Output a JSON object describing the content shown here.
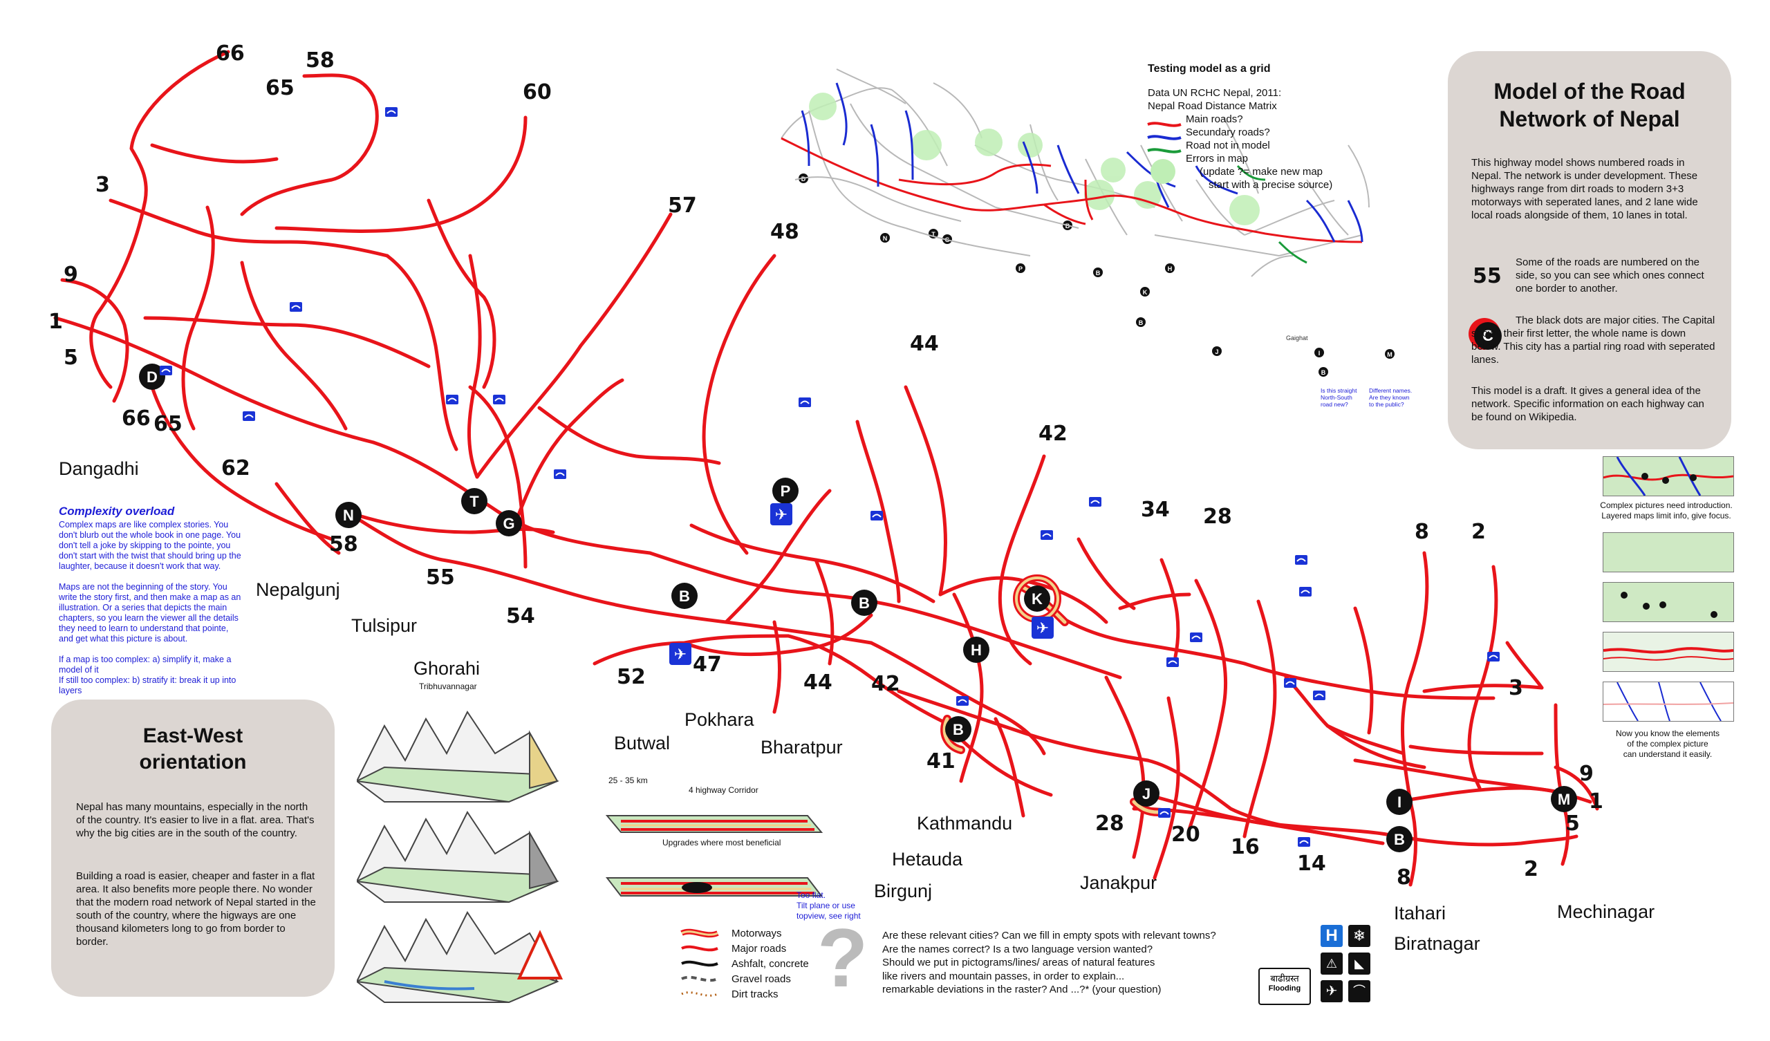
{
  "title_panel": {
    "title_line1": "Model of the Road",
    "title_line2": "Network of Nepal",
    "paragraph1": "This highway model shows numbered roads in Nepal. The network is under development. These highways range from dirt roads to modern 3+3 motorways with seperated lanes, and 2 lane wide local roads alongside of them, 10 lanes in total.",
    "legend_number": "55",
    "legend_number_text": "Some of the roads are numbered on the side, so you can see which ones connect one border to another.",
    "legend_city_letter": "C",
    "legend_city_text": "The black dots are major cities. The Capital shows their first letter, the whole name is down below. This city has a partial ring road with seperated lanes.",
    "paragraph3": "This model is a draft. It gives a general idea of the network. Specific information on each highway can be found on Wikipedia."
  },
  "east_west_panel": {
    "title_line1": "East-West",
    "title_line2": "orientation",
    "paragraph1": "Nepal has many mountains, especially in the north of the country. It's easier to live in a flat. area. That's why the big cities are in the south of the country.",
    "paragraph2": "Building a road is easier, cheaper and faster in a flat area. It also benefits more people there. No wonder that the modern road network of Nepal started in the south of the country, where the higways are one thousand kilometers long to go from border to border."
  },
  "complexity": {
    "title": "Complexity overload",
    "p1": "Complex maps are like complex stories. You don't blurb out the whole book in one page. You don't tell a joke by skipping to the pointe, you don't start with the twist that should bring up the laughter, because it doesn't work that way.",
    "p2": "Maps are not the beginning of the story. You write the story first, and then make a map as an illustration. Or a series that depicts the main chapters, so you learn the viewer all the details they need to learn to understand that pointe, and get what this picture is about.",
    "p3a": "If a map is too complex: a) simplify it, make a model of it",
    "p3b": "If still too complex: b) stratify it: break it up into layers"
  },
  "grid_legend": {
    "title": "Testing model as a grid",
    "source1": "Data UN RCHC Nepal, 2011:",
    "source2": "Nepal Road Distance Matrix",
    "main_roads": "Main roads?",
    "secondary_roads": "Secundary roads?",
    "not_in_model": "Road not in model",
    "errors": "Errors in map",
    "update1": "(update ?= make new map",
    "update2": "start with a precise source)",
    "ghaghat": "Gaighat",
    "note_left1": "Is this straight",
    "note_left2": "North-South",
    "note_left3": "road new?",
    "note_right1": "Different names.",
    "note_right2": "Are they known",
    "note_right3": "to the public?"
  },
  "layers": {
    "caption_top1": "Complex pictures need introduction.",
    "caption_top2": "Layered maps limit info, give focus.",
    "caption_bottom1": "Now you know the elements",
    "caption_bottom2": "of the complex picture",
    "caption_bottom3": "can understand it easily."
  },
  "road_legend": {
    "motorways": "Motorways",
    "major": "Major roads",
    "asphalt": "Ashfalt, concrete",
    "gravel": "Gravel roads",
    "dirt": "Dirt tracks"
  },
  "corridor": {
    "distance": "25 - 35 km",
    "corridor": "4 highway Corridor",
    "upgrades": "Upgrades where most beneficial",
    "note1": "Too flat.",
    "note2": "Tilt plane or use",
    "note3": "topview, see right"
  },
  "questions": {
    "l1": "Are these relevant cities? Can we fill in empty spots with relevant towns?",
    "l2": "Are the names correct? Is a two language version wanted?",
    "l3": "Should we put in pictograms/lines/ areas of natural features",
    "l4": "like rivers and mountain passes, in order to explain...",
    "l5": "remarkable deviations in the raster? And ...?* (your question)",
    "qmark": "?"
  },
  "icons_box": {
    "nepali": "बाढीग्रस्त",
    "flooding": "Flooding",
    "h": "H"
  },
  "cities": [
    {
      "name": "Dangadhi"
    },
    {
      "name": "Nepalgunj"
    },
    {
      "name": "Tulsipur"
    },
    {
      "name": "Ghorahi"
    },
    {
      "name": "Tribhuvannagar"
    },
    {
      "name": "Butwal"
    },
    {
      "name": "Pokhara"
    },
    {
      "name": "Bharatpur"
    },
    {
      "name": "Kathmandu"
    },
    {
      "name": "Hetauda"
    },
    {
      "name": "Birgunj"
    },
    {
      "name": "Janakpur"
    },
    {
      "name": "Itahari"
    },
    {
      "name": "Biratnagar"
    },
    {
      "name": "Mechinagar"
    }
  ],
  "city_markers": [
    "D",
    "N",
    "T",
    "G",
    "P",
    "B",
    "B",
    "H",
    "K",
    "B",
    "J",
    "I",
    "B",
    "M"
  ],
  "road_numbers": [
    "66",
    "65",
    "58",
    "60",
    "3",
    "9",
    "1",
    "5",
    "66",
    "65",
    "62",
    "58",
    "55",
    "54",
    "57",
    "48",
    "52",
    "47",
    "44",
    "44",
    "42",
    "42",
    "41",
    "34",
    "28",
    "8",
    "2",
    "3",
    "9",
    "1",
    "5",
    "2",
    "8",
    "14",
    "16",
    "20",
    "28"
  ],
  "colors": {
    "road": "#e8141a",
    "marker": "#111111",
    "panel": "#dcd6d2",
    "airport": "#1a33d6",
    "secondary": "#1a2bd1",
    "not_in_model": "#1a9b3a",
    "error_area": "#bfeeb5"
  }
}
